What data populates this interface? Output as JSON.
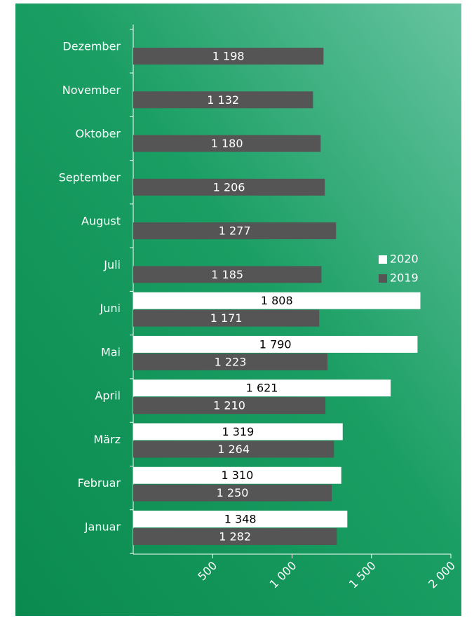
{
  "chart_data": {
    "type": "bar",
    "orientation": "horizontal",
    "categories": [
      "Januar",
      "Februar",
      "März",
      "April",
      "Mai",
      "Juni",
      "Juli",
      "August",
      "September",
      "Oktober",
      "November",
      "Dezember"
    ],
    "series": [
      {
        "name": "2020",
        "color": "#ffffff",
        "values": [
          1348,
          1310,
          1319,
          1621,
          1790,
          1808,
          null,
          null,
          null,
          null,
          null,
          null
        ],
        "value_labels": [
          "1 348",
          "1 310",
          "1 319",
          "1 621",
          "1 790",
          "1 808",
          null,
          null,
          null,
          null,
          null,
          null
        ]
      },
      {
        "name": "2019",
        "color": "#555555",
        "values": [
          1282,
          1250,
          1264,
          1210,
          1223,
          1171,
          1185,
          1277,
          1206,
          1180,
          1132,
          1198
        ],
        "value_labels": [
          "1 282",
          "1 250",
          "1 264",
          "1 210",
          "1 223",
          "1 171",
          "1 185",
          "1 277",
          "1 206",
          "1 180",
          "1 132",
          "1 198"
        ]
      }
    ],
    "xlim": [
      0,
      2000
    ],
    "xticks": [
      500,
      {
        "value": 1000,
        "label": "1 000"
      },
      {
        "value": 1500,
        "label": "1 500"
      },
      {
        "value": 2000,
        "label": "2 000"
      }
    ],
    "legend": "right"
  }
}
